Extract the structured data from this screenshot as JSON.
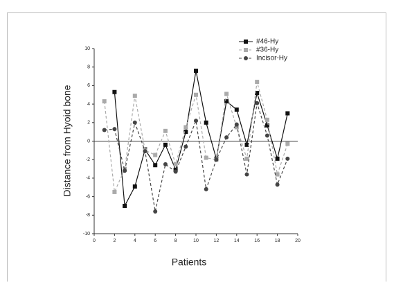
{
  "chart_data": {
    "type": "line",
    "x_label": "Patients",
    "y_label": "Distance from Hyoid bone",
    "x": [
      1,
      2,
      3,
      4,
      5,
      6,
      7,
      8,
      9,
      10,
      11,
      12,
      13,
      14,
      15,
      16,
      17,
      18,
      19
    ],
    "series": [
      {
        "name": "#46-Hy",
        "color": "#111111",
        "dash": false,
        "marker": "square",
        "values": [
          null,
          5.3,
          -7.0,
          -4.9,
          -0.9,
          -2.6,
          -0.4,
          -3.1,
          1.0,
          7.6,
          2.0,
          -1.9,
          4.3,
          3.4,
          -0.4,
          5.2,
          1.7,
          -1.9,
          3.0
        ]
      },
      {
        "name": "#36-Hy",
        "color": "#aaaaaa",
        "dash": true,
        "marker": "square",
        "values": [
          4.3,
          -5.5,
          -3.0,
          4.9,
          -1.0,
          -1.5,
          1.1,
          -2.5,
          1.5,
          5.0,
          -1.8,
          -2.0,
          5.1,
          1.5,
          -1.9,
          6.4,
          2.3,
          -3.6,
          -0.3
        ]
      },
      {
        "name": "Incisor-Hy",
        "color": "#444444",
        "dash": true,
        "marker": "circle",
        "values": [
          1.2,
          1.3,
          -3.2,
          2.0,
          -1.1,
          -7.6,
          -2.5,
          -3.3,
          -0.6,
          2.2,
          -5.2,
          -2.0,
          0.4,
          1.8,
          -3.6,
          4.1,
          0.6,
          -4.7,
          -1.9
        ]
      }
    ],
    "xlim": [
      0,
      20
    ],
    "xticks": [
      0,
      2,
      4,
      6,
      8,
      10,
      12,
      14,
      16,
      18,
      20
    ],
    "ylim": [
      -10,
      10
    ],
    "yticks": [
      10,
      8,
      6,
      4,
      2,
      0,
      -2,
      -4,
      -6,
      -8,
      -10
    ],
    "zero_line": true,
    "legend": "top-right"
  }
}
